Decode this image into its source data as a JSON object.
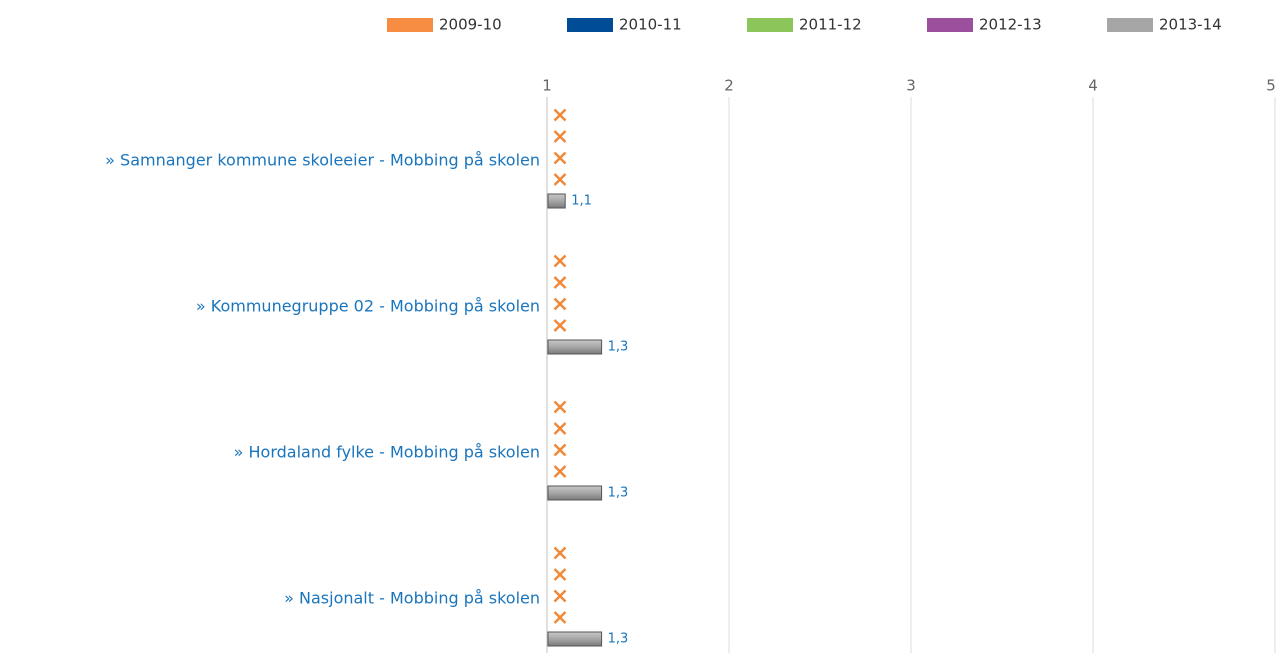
{
  "chart_data": {
    "type": "bar",
    "orientation": "horizontal",
    "categories": [
      "» Samnanger kommune skoleeier - Mobbing på skolen",
      "» Kommunegruppe 02 - Mobbing på skolen",
      "» Hordaland fylke - Mobbing på skolen",
      "» Nasjonalt - Mobbing på skolen"
    ],
    "series": [
      {
        "name": "2009-10",
        "color": "#f68d42",
        "values": [
          null,
          null,
          null,
          null
        ]
      },
      {
        "name": "2010-11",
        "color": "#004c97",
        "values": [
          null,
          null,
          null,
          null
        ]
      },
      {
        "name": "2011-12",
        "color": "#8cc65a",
        "values": [
          null,
          null,
          null,
          null
        ]
      },
      {
        "name": "2012-13",
        "color": "#9c4f9d",
        "values": [
          null,
          null,
          null,
          null
        ]
      },
      {
        "name": "2013-14",
        "color": "#a6a6a6",
        "values": [
          1.1,
          1.3,
          1.3,
          1.3
        ],
        "value_labels": [
          "1,1",
          "1,3",
          "1,3",
          "1,3"
        ]
      }
    ],
    "missing_marker_color": "#f0883a",
    "xlim": [
      1,
      5
    ],
    "xticks": [
      1,
      2,
      3,
      4,
      5
    ],
    "grid": true,
    "legend": "top-right"
  }
}
